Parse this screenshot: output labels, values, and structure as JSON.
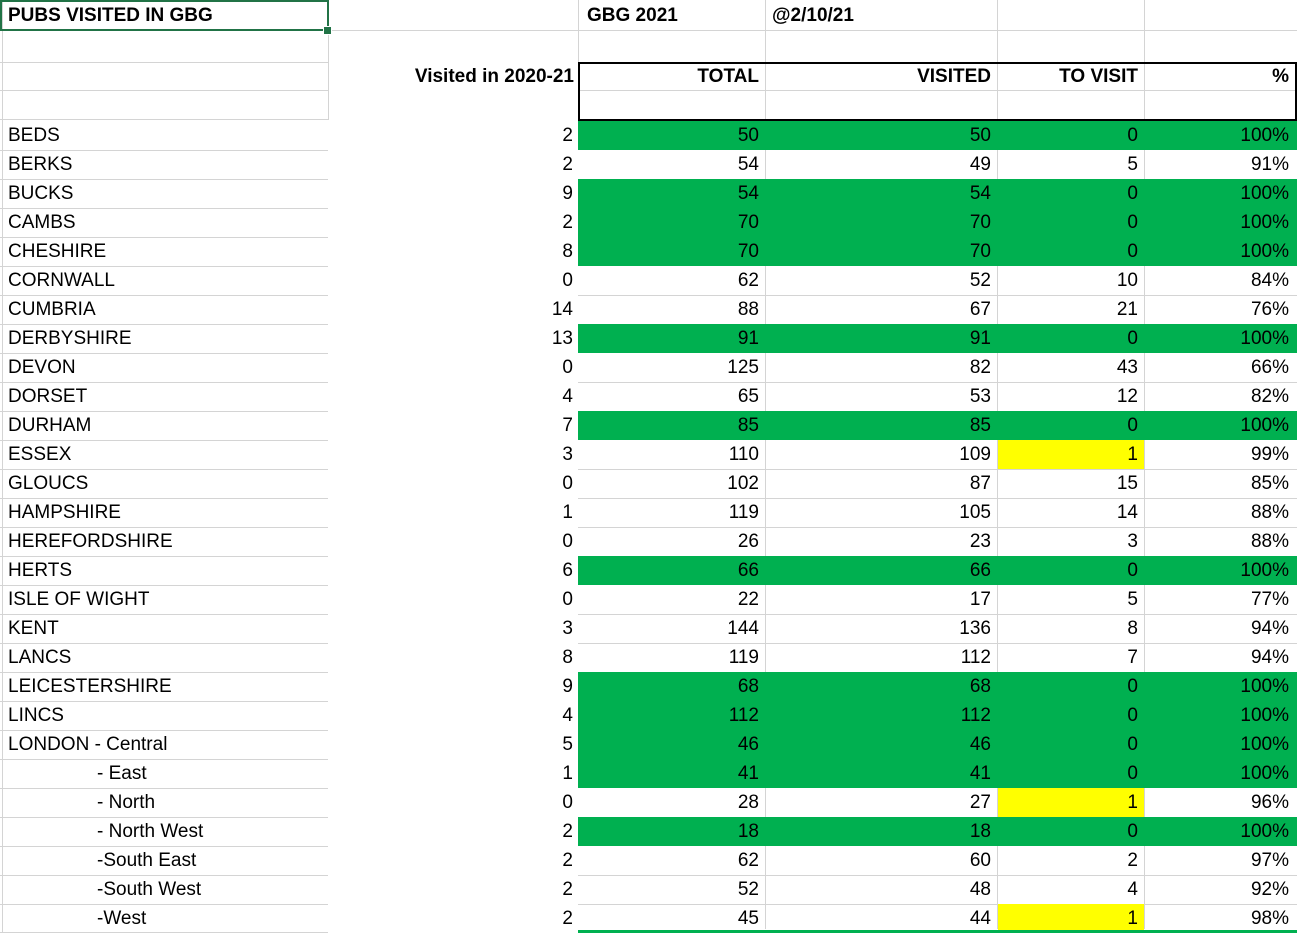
{
  "title": "PUBS VISITED IN GBG",
  "top": {
    "guide_label": "GBG 2021",
    "as_of_label": "@2/10/21"
  },
  "header": {
    "visited_col_label": "Visited in 2020-21",
    "columns": [
      "TOTAL",
      "VISITED",
      "TO VISIT",
      "%"
    ]
  },
  "colors": {
    "green_fill": "#00B050",
    "yellow_fill": "#FFFF00",
    "selection_border": "#217346",
    "gridline": "#d4d4d4",
    "border_black": "#000000"
  },
  "rows": [
    {
      "county": "BEDS",
      "indent": false,
      "visited_2020_21": "2",
      "total": "50",
      "visited": "50",
      "to_visit": "0",
      "pct": "100%",
      "highlight": "green"
    },
    {
      "county": "BERKS",
      "indent": false,
      "visited_2020_21": "2",
      "total": "54",
      "visited": "49",
      "to_visit": "5",
      "pct": "91%",
      "highlight": "none"
    },
    {
      "county": "BUCKS",
      "indent": false,
      "visited_2020_21": "9",
      "total": "54",
      "visited": "54",
      "to_visit": "0",
      "pct": "100%",
      "highlight": "green"
    },
    {
      "county": "CAMBS",
      "indent": false,
      "visited_2020_21": "2",
      "total": "70",
      "visited": "70",
      "to_visit": "0",
      "pct": "100%",
      "highlight": "green"
    },
    {
      "county": "CHESHIRE",
      "indent": false,
      "visited_2020_21": "8",
      "total": "70",
      "visited": "70",
      "to_visit": "0",
      "pct": "100%",
      "highlight": "green"
    },
    {
      "county": "CORNWALL",
      "indent": false,
      "visited_2020_21": "0",
      "total": "62",
      "visited": "52",
      "to_visit": "10",
      "pct": "84%",
      "highlight": "none"
    },
    {
      "county": "CUMBRIA",
      "indent": false,
      "visited_2020_21": "14",
      "total": "88",
      "visited": "67",
      "to_visit": "21",
      "pct": "76%",
      "highlight": "none"
    },
    {
      "county": "DERBYSHIRE",
      "indent": false,
      "visited_2020_21": "13",
      "total": "91",
      "visited": "91",
      "to_visit": "0",
      "pct": "100%",
      "highlight": "green"
    },
    {
      "county": "DEVON",
      "indent": false,
      "visited_2020_21": "0",
      "total": "125",
      "visited": "82",
      "to_visit": "43",
      "pct": "66%",
      "highlight": "none"
    },
    {
      "county": "DORSET",
      "indent": false,
      "visited_2020_21": "4",
      "total": "65",
      "visited": "53",
      "to_visit": "12",
      "pct": "82%",
      "highlight": "none"
    },
    {
      "county": "DURHAM",
      "indent": false,
      "visited_2020_21": "7",
      "total": "85",
      "visited": "85",
      "to_visit": "0",
      "pct": "100%",
      "highlight": "green"
    },
    {
      "county": "ESSEX",
      "indent": false,
      "visited_2020_21": "3",
      "total": "110",
      "visited": "109",
      "to_visit": "1",
      "pct": "99%",
      "highlight": "yellow"
    },
    {
      "county": "GLOUCS",
      "indent": false,
      "visited_2020_21": "0",
      "total": "102",
      "visited": "87",
      "to_visit": "15",
      "pct": "85%",
      "highlight": "none"
    },
    {
      "county": "HAMPSHIRE",
      "indent": false,
      "visited_2020_21": "1",
      "total": "119",
      "visited": "105",
      "to_visit": "14",
      "pct": "88%",
      "highlight": "none"
    },
    {
      "county": "HEREFORDSHIRE",
      "indent": false,
      "visited_2020_21": "0",
      "total": "26",
      "visited": "23",
      "to_visit": "3",
      "pct": "88%",
      "highlight": "none"
    },
    {
      "county": "HERTS",
      "indent": false,
      "visited_2020_21": "6",
      "total": "66",
      "visited": "66",
      "to_visit": "0",
      "pct": "100%",
      "highlight": "green"
    },
    {
      "county": "ISLE OF WIGHT",
      "indent": false,
      "visited_2020_21": "0",
      "total": "22",
      "visited": "17",
      "to_visit": "5",
      "pct": "77%",
      "highlight": "none"
    },
    {
      "county": "KENT",
      "indent": false,
      "visited_2020_21": "3",
      "total": "144",
      "visited": "136",
      "to_visit": "8",
      "pct": "94%",
      "highlight": "none"
    },
    {
      "county": "LANCS",
      "indent": false,
      "visited_2020_21": "8",
      "total": "119",
      "visited": "112",
      "to_visit": "7",
      "pct": "94%",
      "highlight": "none"
    },
    {
      "county": "LEICESTERSHIRE",
      "indent": false,
      "visited_2020_21": "9",
      "total": "68",
      "visited": "68",
      "to_visit": "0",
      "pct": "100%",
      "highlight": "green"
    },
    {
      "county": "LINCS",
      "indent": false,
      "visited_2020_21": "4",
      "total": "112",
      "visited": "112",
      "to_visit": "0",
      "pct": "100%",
      "highlight": "green"
    },
    {
      "county": "LONDON - Central",
      "indent": false,
      "visited_2020_21": "5",
      "total": "46",
      "visited": "46",
      "to_visit": "0",
      "pct": "100%",
      "highlight": "green"
    },
    {
      "county": "- East",
      "indent": true,
      "visited_2020_21": "1",
      "total": "41",
      "visited": "41",
      "to_visit": "0",
      "pct": "100%",
      "highlight": "green"
    },
    {
      "county": "- North",
      "indent": true,
      "visited_2020_21": "0",
      "total": "28",
      "visited": "27",
      "to_visit": "1",
      "pct": "96%",
      "highlight": "yellow"
    },
    {
      "county": "- North West",
      "indent": true,
      "visited_2020_21": "2",
      "total": "18",
      "visited": "18",
      "to_visit": "0",
      "pct": "100%",
      "highlight": "green"
    },
    {
      "county": "-South East",
      "indent": true,
      "visited_2020_21": "2",
      "total": "62",
      "visited": "60",
      "to_visit": "2",
      "pct": "97%",
      "highlight": "none"
    },
    {
      "county": "-South West",
      "indent": true,
      "visited_2020_21": "2",
      "total": "52",
      "visited": "48",
      "to_visit": "4",
      "pct": "92%",
      "highlight": "none"
    },
    {
      "county": "-West",
      "indent": true,
      "visited_2020_21": "2",
      "total": "45",
      "visited": "44",
      "to_visit": "1",
      "pct": "98%",
      "highlight": "yellow"
    }
  ],
  "next_row_partially_visible": {
    "highlight": "green"
  }
}
